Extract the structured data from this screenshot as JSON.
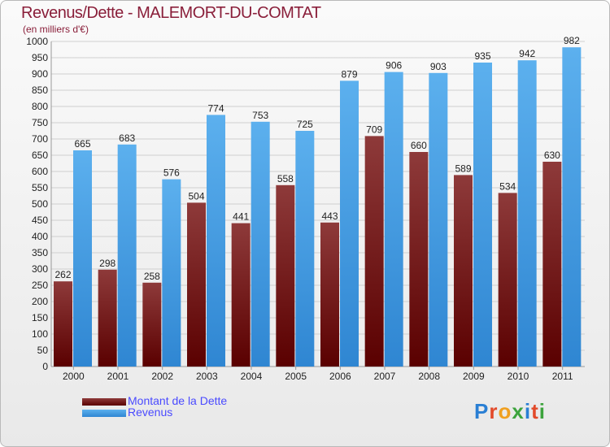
{
  "header": {
    "title": "Revenus/Dette - MALEMORT-DU-COMTAT",
    "subtitle": "(en milliers d'€)"
  },
  "legend": [
    {
      "label": "Montant de la Dette",
      "color": "#6b0f0f"
    },
    {
      "label": "Revenus",
      "color": "#3d9be6"
    }
  ],
  "logo": {
    "text": "Proxiti"
  },
  "colors": {
    "dette_top": "#8e3a3a",
    "dette_bottom": "#5a0000",
    "revenus_top": "#5cb0ee",
    "revenus_bottom": "#2f86d2",
    "grid": "#cfcfcf",
    "axis_text": "#222222"
  },
  "chart_data": {
    "type": "bar",
    "title": "Revenus/Dette - MALEMORT-DU-COMTAT",
    "subtitle": "(en milliers d'€)",
    "xlabel": "",
    "ylabel": "",
    "ylim": [
      0,
      1000
    ],
    "ytick_step": 50,
    "grid": true,
    "legend_position": "bottom-left",
    "categories": [
      "2000",
      "2001",
      "2002",
      "2003",
      "2004",
      "2005",
      "2006",
      "2007",
      "2008",
      "2009",
      "2010",
      "2011"
    ],
    "series": [
      {
        "name": "Montant de la Dette",
        "values": [
          262,
          298,
          258,
          504,
          441,
          558,
          443,
          709,
          660,
          589,
          534,
          630
        ]
      },
      {
        "name": "Revenus",
        "values": [
          665,
          683,
          576,
          774,
          753,
          725,
          879,
          906,
          903,
          935,
          942,
          982
        ]
      }
    ]
  }
}
